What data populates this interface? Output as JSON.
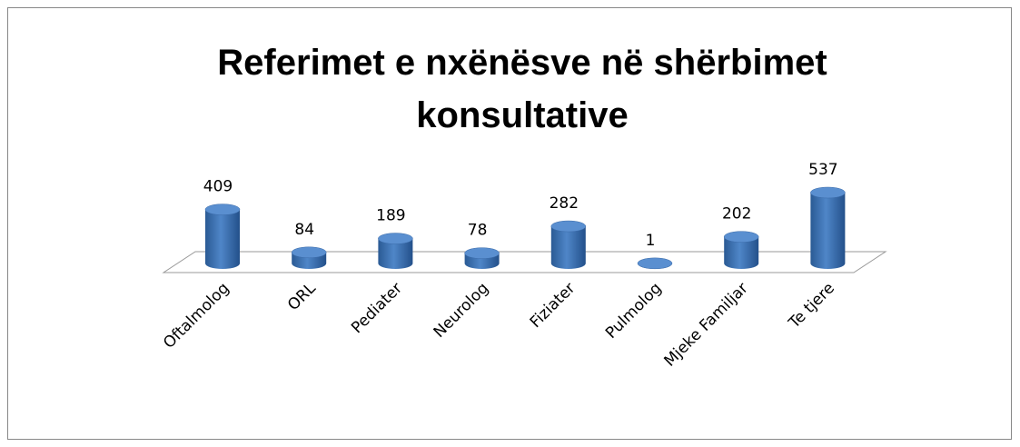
{
  "chart_data": {
    "type": "bar3d-cylinder",
    "title": "Referimet e nxënësve në shërbimet konsultative",
    "categories": [
      "Oftalmolog",
      "ORL",
      "Pediater",
      "Neurolog",
      "Fiziater",
      "Pulmolog",
      "Mjeke Familjar",
      "Te tjere"
    ],
    "values": [
      409,
      84,
      189,
      78,
      282,
      1,
      202,
      537
    ],
    "color": "#4a7ebb"
  }
}
